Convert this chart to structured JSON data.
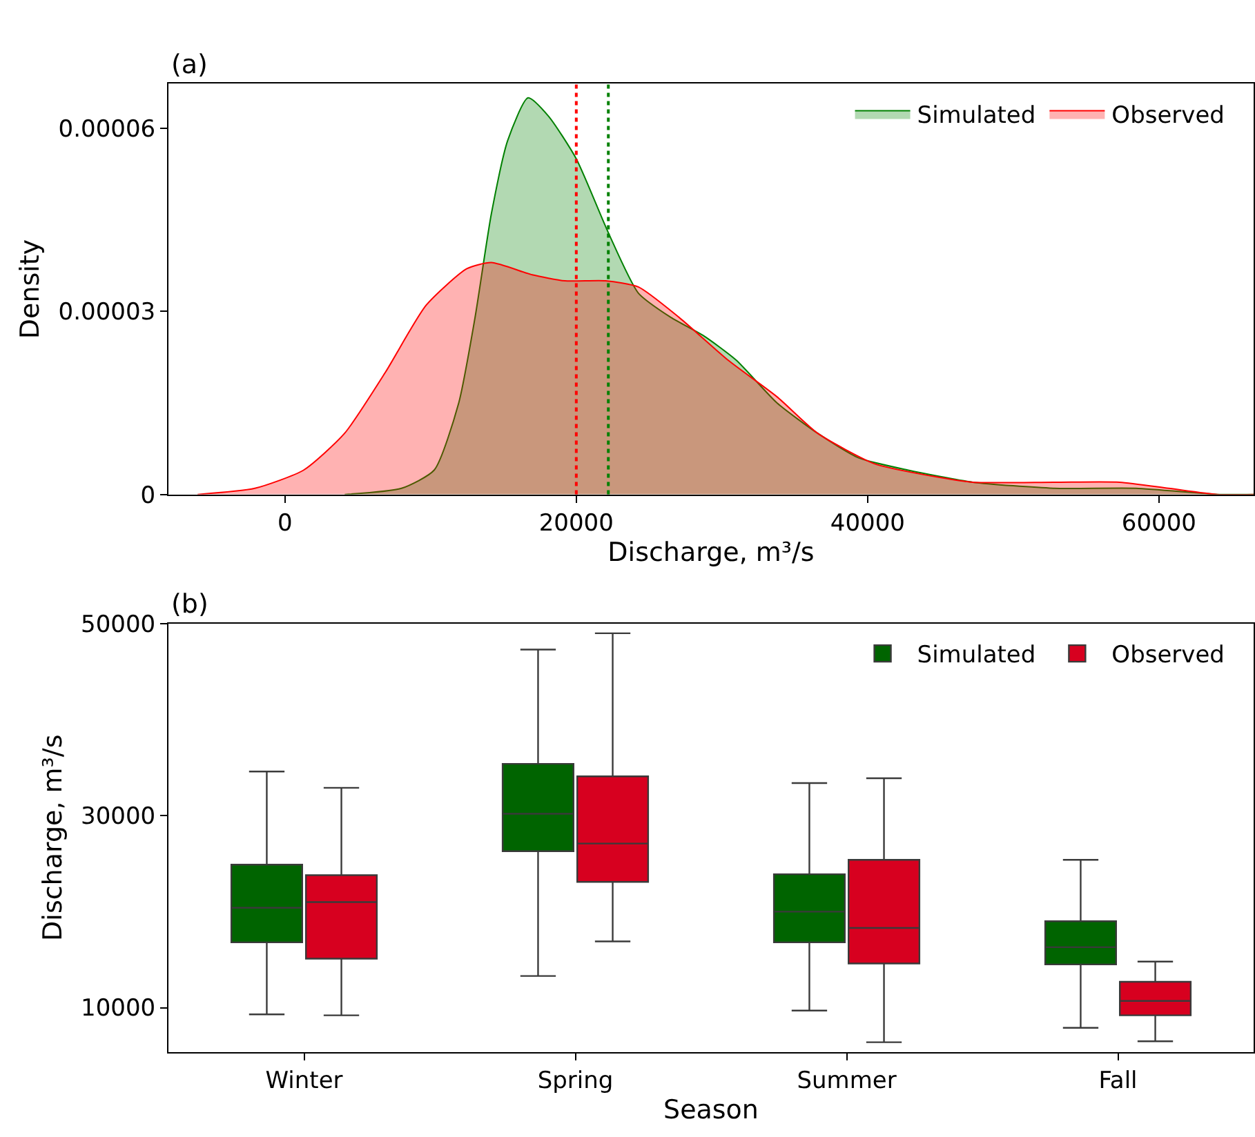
{
  "chart_data": [
    {
      "type": "area",
      "title": "(a)",
      "xlabel": "Discharge, m³/s",
      "ylabel": "Density",
      "xlim": [
        -8000,
        66500
      ],
      "xticks": [
        0,
        20000,
        40000,
        60000
      ],
      "ylim": [
        0,
        6.73e-05
      ],
      "yticks": [
        {
          "value": 0,
          "label": "0"
        },
        {
          "value": 3e-05,
          "label": "0.00003"
        },
        {
          "value": 6e-05,
          "label": "0.00006"
        }
      ],
      "legend": "top right",
      "series": [
        {
          "name": "Simulated",
          "color": "#008000",
          "x": [
            4100,
            8000,
            10250,
            11930,
            13050,
            14170,
            15290,
            16690,
            18090,
            20000,
            22180,
            24260,
            26500,
            28740,
            30980,
            33780,
            36580,
            39380,
            42740,
            47220,
            52820,
            58430,
            64030,
            66500
          ],
          "values": [
            0,
            1e-06,
            4e-06,
            1.5e-05,
            2.9e-05,
            4.6e-05,
            5.8e-05,
            6.5e-05,
            6.2e-05,
            5.5e-05,
            4.3e-05,
            3.3e-05,
            2.9e-05,
            2.6e-05,
            2.2e-05,
            1.5e-05,
            1e-05,
            6e-06,
            4e-06,
            2e-06,
            1e-06,
            1e-06,
            0,
            0
          ]
        },
        {
          "name": "Observed",
          "color": "#ff0000",
          "x": [
            -6000,
            -2070,
            1290,
            4090,
            6890,
            9690,
            12490,
            14170,
            16970,
            19210,
            22010,
            24260,
            27060,
            30420,
            33780,
            36580,
            40500,
            44420,
            47220,
            52820,
            57300,
            60670,
            64030,
            66500
          ],
          "values": [
            0,
            1e-06,
            4e-06,
            1e-05,
            2e-05,
            3.1e-05,
            3.7e-05,
            3.8e-05,
            3.6e-05,
            3.5e-05,
            3.5e-05,
            3.4e-05,
            2.9e-05,
            2.2e-05,
            1.6e-05,
            1e-05,
            5e-06,
            3e-06,
            2e-06,
            2e-06,
            2e-06,
            1e-06,
            0,
            0
          ]
        }
      ],
      "ref_lines": [
        {
          "axis": "x",
          "value": 20000,
          "color": "#ff0000",
          "line_style": "dotted"
        },
        {
          "axis": "x",
          "value": 22200,
          "color": "#008000",
          "line_style": "dotted"
        }
      ]
    },
    {
      "type": "box",
      "title": "(b)",
      "xlabel": "Season",
      "ylabel": "Discharge, m³/s",
      "categories": [
        "Winter",
        "Spring",
        "Summer",
        "Fall"
      ],
      "ylim": [
        5400,
        50000
      ],
      "yticks": [
        10000,
        30000,
        50000
      ],
      "legend": "top right",
      "series": [
        {
          "name": "Simulated",
          "color": "#006400",
          "boxes": [
            {
              "low": 9300,
              "q1": 16800,
              "median": 20400,
              "q3": 24900,
              "high": 34600
            },
            {
              "low": 13300,
              "q1": 26300,
              "median": 30200,
              "q3": 35400,
              "high": 47300
            },
            {
              "low": 9700,
              "q1": 16800,
              "median": 20000,
              "q3": 23900,
              "high": 33400
            },
            {
              "low": 7900,
              "q1": 14500,
              "median": 16300,
              "q3": 19000,
              "high": 25400
            }
          ]
        },
        {
          "name": "Observed",
          "color": "#d7001f",
          "boxes": [
            {
              "low": 9200,
              "q1": 15100,
              "median": 21000,
              "q3": 23800,
              "high": 32900
            },
            {
              "low": 16900,
              "q1": 23100,
              "median": 27100,
              "q3": 34100,
              "high": 49000
            },
            {
              "low": 6400,
              "q1": 14600,
              "median": 18300,
              "q3": 25400,
              "high": 33900
            },
            {
              "low": 6500,
              "q1": 9200,
              "median": 10700,
              "q3": 12700,
              "high": 14800
            }
          ]
        }
      ]
    }
  ]
}
